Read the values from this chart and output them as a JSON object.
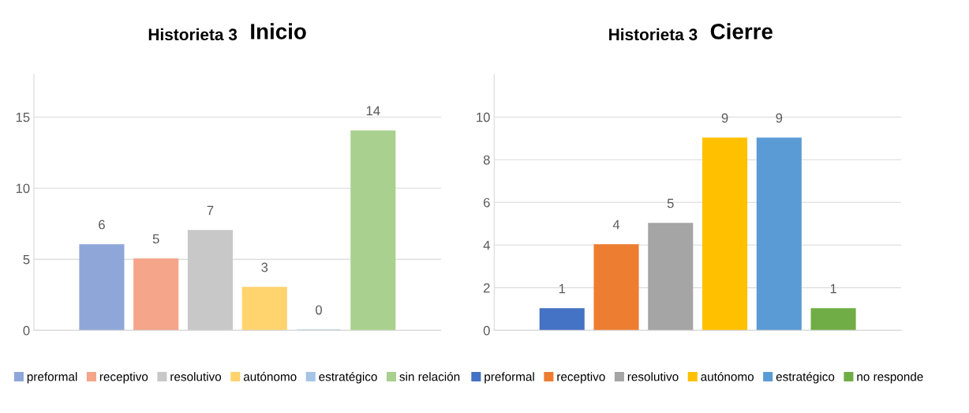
{
  "chart_data": [
    {
      "type": "bar",
      "title": "Historieta 3",
      "subtitle": "Inicio",
      "categories": [
        null
      ],
      "series": [
        {
          "name": "preformal",
          "color": "#8fa7d8",
          "values": [
            6
          ]
        },
        {
          "name": "receptivo",
          "color": "#f4a58a",
          "values": [
            5
          ]
        },
        {
          "name": "resolutivo",
          "color": "#c8c8c8",
          "values": [
            7
          ]
        },
        {
          "name": "autónomo",
          "color": "#ffd36e",
          "values": [
            3
          ]
        },
        {
          "name": "estratégico",
          "color": "#a6c4e6",
          "values": [
            0
          ]
        },
        {
          "name": "sin relación",
          "color": "#a9d08e",
          "values": [
            14
          ]
        }
      ],
      "ylim": [
        0,
        18
      ],
      "yticks": [
        0,
        5,
        10,
        15
      ],
      "grid": "y",
      "legend": "bottom",
      "data_labels": true
    },
    {
      "type": "bar",
      "title": "Historieta 3",
      "subtitle": "Cierre",
      "categories": [
        null
      ],
      "series": [
        {
          "name": "preformal",
          "color": "#4472c4",
          "values": [
            1
          ]
        },
        {
          "name": "receptivo",
          "color": "#ed7d31",
          "values": [
            4
          ]
        },
        {
          "name": "resolutivo",
          "color": "#a5a5a5",
          "values": [
            5
          ]
        },
        {
          "name": "autónomo",
          "color": "#ffc000",
          "values": [
            9
          ]
        },
        {
          "name": "estratégico",
          "color": "#5b9bd5",
          "values": [
            9
          ]
        },
        {
          "name": "no responde",
          "color": "#70ad47",
          "values": [
            1
          ]
        }
      ],
      "ylim": [
        0,
        12
      ],
      "yticks": [
        0,
        2,
        4,
        6,
        8,
        10
      ],
      "grid": "y",
      "legend": "bottom",
      "data_labels": true
    }
  ]
}
